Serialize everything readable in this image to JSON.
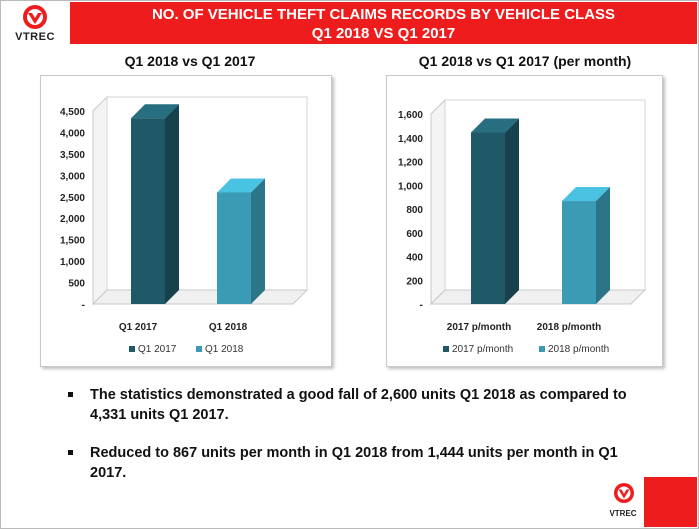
{
  "header": {
    "line1": "NO. OF VEHICLE THEFT CLAIMS RECORDS BY VEHICLE CLASS",
    "line2": "Q1 2018 VS Q1 2017",
    "logo_text": "VTREC",
    "brand_color": "#ee1c1c"
  },
  "charts": {
    "left_title": "Q1 2018 vs Q1 2017",
    "right_title": "Q1 2018 vs Q1 2017 (per month)"
  },
  "chart_data": [
    {
      "type": "bar",
      "title": "Q1 2018 vs Q1 2017",
      "categories": [
        "Q1 2017",
        "Q1 2018"
      ],
      "values": [
        4331,
        2600
      ],
      "colors": [
        "#1f5866",
        "#3b9bb4"
      ],
      "legend": [
        "Q1 2017",
        "Q1 2018"
      ],
      "legend_position": "bottom",
      "ylim": [
        0,
        4500
      ],
      "yticks": [
        "-",
        "500",
        "1,000",
        "1,500",
        "2,000",
        "2,500",
        "3,000",
        "3,500",
        "4,000",
        "4,500"
      ],
      "grid": false
    },
    {
      "type": "bar",
      "title": "Q1 2018 vs Q1 2017 (per month)",
      "categories": [
        "2017 p/month",
        "2018 p/month"
      ],
      "values": [
        1444,
        867
      ],
      "colors": [
        "#1f5866",
        "#3b9bb4"
      ],
      "legend": [
        "2017 p/month",
        "2018 p/month"
      ],
      "legend_position": "bottom",
      "ylim": [
        0,
        1600
      ],
      "yticks": [
        "-",
        "200",
        "400",
        "600",
        "800",
        "1,000",
        "1,200",
        "1,400",
        "1,600"
      ],
      "grid": false
    }
  ],
  "bullets": [
    "The statistics demonstrated a good fall of 2,600 units  Q1 2018 as compared to 4,331 units Q1 2017.",
    "Reduced to 867 units  per month in Q1 2018 from 1,444 units per month in Q1 2017."
  ],
  "footer": {
    "logo_text": "VTREC"
  }
}
